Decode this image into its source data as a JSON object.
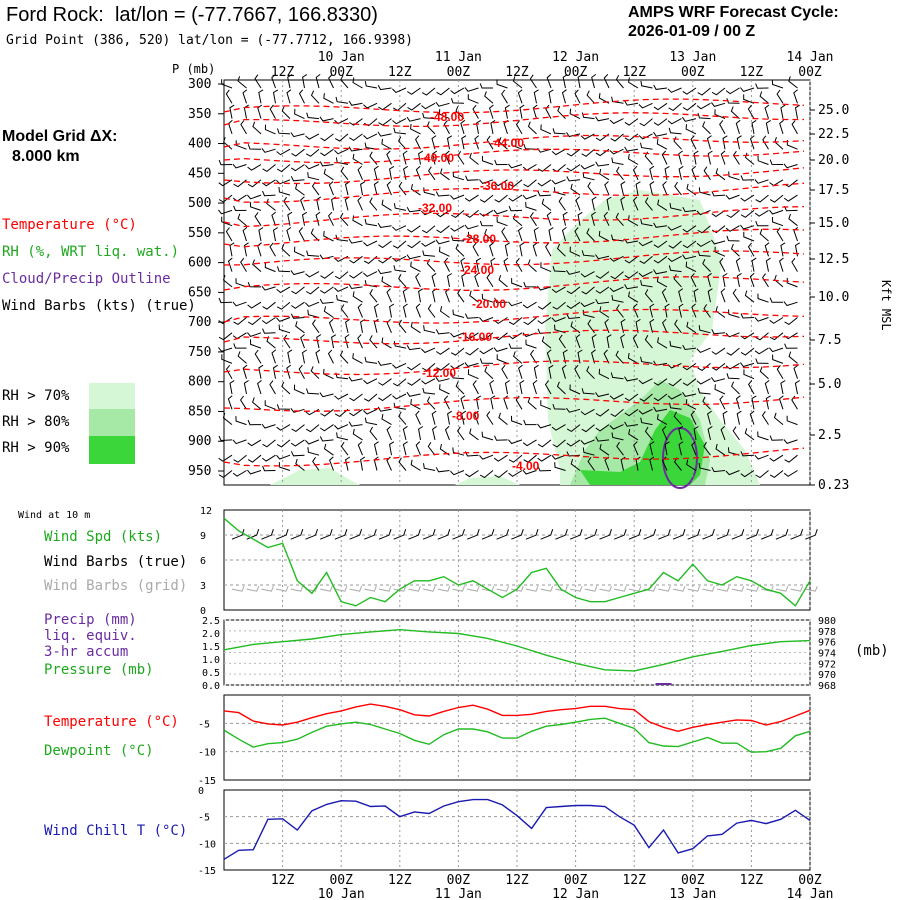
{
  "header": {
    "station": "Ford Rock:",
    "latlon": "lat/lon = (-77.7667, 166.8330)",
    "grid_point": "Grid Point (386, 520) lat/lon = (-77.7712, 166.9398)",
    "cycle_title": "AMPS WRF Forecast Cycle:",
    "cycle_time": "2026-01-09 / 00  Z"
  },
  "legend": {
    "model_grid": "Model Grid ΔX:",
    "model_dx": "8.000 km",
    "temperature": "Temperature (°C)",
    "rh": "RH (%, WRT liq. wat.)",
    "cloud": "Cloud/Precip Outline",
    "wind": "Wind Barbs (kts) (true)",
    "rh70": "RH > 70%",
    "rh80": "RH > 80%",
    "rh90": "RH > 90%"
  },
  "colors": {
    "temp": "#ff0000",
    "rh": "#1ea81e",
    "cloud": "#6a2ca0",
    "wind": "#000000",
    "rh70": "#d6f7d6",
    "rh80": "#a6e8a6",
    "rh90": "#3ad63a",
    "pressure": "#22bb22",
    "windchill": "#1a1ab0",
    "grid_barbs": "#aaaaaa"
  },
  "time_axis": {
    "top_hours": [
      "12Z",
      "00Z",
      "12Z",
      "00Z",
      "12Z",
      "00Z",
      "12Z",
      "00Z",
      "12Z",
      "00Z"
    ],
    "top_dates": [
      "10 Jan",
      "11 Jan",
      "12 Jan",
      "13 Jan",
      "14 Jan"
    ],
    "bottom_hours": [
      "12Z",
      "00Z",
      "12Z",
      "00Z",
      "12Z",
      "00Z",
      "12Z",
      "00Z",
      "12Z",
      "00Z"
    ],
    "bottom_dates": [
      "10 Jan",
      "11 Jan",
      "12 Jan",
      "13 Jan",
      "14 Jan"
    ]
  },
  "profile": {
    "p_unit": "P (mb)",
    "p_levels": [
      "300",
      "350",
      "400",
      "450",
      "500",
      "550",
      "600",
      "650",
      "700",
      "750",
      "800",
      "850",
      "900",
      "950"
    ],
    "kft_levels": [
      "25.0",
      "22.5",
      "20.0",
      "17.5",
      "15.0",
      "12.5",
      "10.0",
      "7.5",
      "5.0",
      "2.5",
      "0.23"
    ],
    "kft_label": "Kft MSL",
    "isotherm_labels": [
      "-48.00",
      "-44.00",
      "-40.00",
      "-36.00",
      "-32.00",
      "-28.00",
      "-24.00",
      "-20.00",
      "-16.00",
      "-12.00",
      "-8.00",
      "-4.00"
    ]
  },
  "wind_panel": {
    "title": "Wind at 10 m",
    "l1": "Wind Spd (kts)",
    "l2": "Wind Barbs (true)",
    "l3": "Wind Barbs (grid)",
    "ticks": [
      "12",
      "9",
      "6",
      "3",
      "0"
    ]
  },
  "pressure_panel": {
    "l1": "Precip (mm)",
    "l2": "liq. equiv.",
    "l3": "3-hr accum",
    "l4": "Pressure (mb)",
    "unit": "(mb)",
    "left_ticks": [
      "2.5",
      "2.0",
      "1.5",
      "1.0",
      "0.5",
      "0.0"
    ],
    "right_ticks": [
      "980",
      "978",
      "976",
      "974",
      "972",
      "970",
      "968"
    ]
  },
  "temp_panel": {
    "l1": "Temperature (°C)",
    "l2": "Dewpoint (°C)",
    "ticks": [
      "-5",
      "-10",
      "-15"
    ]
  },
  "chill_panel": {
    "l1": "Wind Chill T (°C)",
    "ticks": [
      "0",
      "-5",
      "-10",
      "-15"
    ]
  },
  "chart_data": [
    {
      "type": "line",
      "title": "Wind at 10 m",
      "ylabel": "Wind Spd (kts)",
      "ylim": [
        0,
        12
      ],
      "x_hours": [
        0,
        3,
        6,
        9,
        12,
        15,
        18,
        21,
        24,
        27,
        30,
        33,
        36,
        39,
        42,
        45,
        48,
        51,
        54,
        57,
        60,
        63,
        66,
        69,
        72,
        75,
        78,
        81,
        84,
        87,
        90,
        93,
        96,
        99,
        102,
        105,
        108,
        111,
        114,
        117,
        120
      ],
      "series": [
        {
          "name": "Wind Spd (kts)",
          "values": [
            11.0,
            9.5,
            8.5,
            7.5,
            8.0,
            3.5,
            2.0,
            4.5,
            1.0,
            0.5,
            1.5,
            1.0,
            2.5,
            3.5,
            3.5,
            4.0,
            3.0,
            3.5,
            2.5,
            1.5,
            2.5,
            4.5,
            5.0,
            2.5,
            1.5,
            1.0,
            1.0,
            1.5,
            2.0,
            2.5,
            4.5,
            3.5,
            5.5,
            3.5,
            3.0,
            4.0,
            3.5,
            2.5,
            2.0,
            0.5,
            3.5
          ]
        }
      ]
    },
    {
      "type": "line",
      "title": "Precip / Pressure",
      "ylabel": "Pressure (mb)",
      "ylim": [
        968,
        980
      ],
      "x_hours": [
        0,
        6,
        12,
        18,
        24,
        30,
        36,
        42,
        48,
        54,
        60,
        66,
        72,
        78,
        84,
        90,
        96,
        102,
        108,
        114,
        120
      ],
      "series": [
        {
          "name": "Pressure (mb)",
          "values": [
            974.5,
            975.5,
            976.0,
            976.5,
            977.3,
            977.8,
            978.2,
            977.8,
            977.5,
            976.6,
            975.2,
            973.5,
            972.0,
            970.8,
            970.6,
            971.8,
            973.2,
            974.2,
            975.3,
            976.0,
            976.2
          ]
        },
        {
          "name": "Precip (mm) 3-hr accum",
          "values": [
            0,
            0,
            0,
            0,
            0,
            0,
            0,
            0,
            0,
            0,
            0,
            0,
            0,
            0,
            0,
            0.05,
            0,
            0,
            0,
            0,
            0
          ]
        }
      ]
    },
    {
      "type": "line",
      "title": "Temperature / Dewpoint",
      "ylabel": "°C",
      "ylim": [
        -15,
        0
      ],
      "x_hours": [
        0,
        3,
        6,
        9,
        12,
        15,
        18,
        21,
        24,
        27,
        30,
        33,
        36,
        39,
        42,
        45,
        48,
        51,
        54,
        57,
        60,
        63,
        66,
        69,
        72,
        75,
        78,
        81,
        84,
        87,
        90,
        93,
        96,
        99,
        102,
        105,
        108,
        111,
        114,
        117,
        120
      ],
      "series": [
        {
          "name": "Temperature (°C)",
          "values": [
            -2.8,
            -3.1,
            -4.6,
            -5.1,
            -5.3,
            -4.8,
            -4.0,
            -3.3,
            -2.8,
            -2.1,
            -1.6,
            -2.0,
            -2.6,
            -3.5,
            -3.7,
            -2.9,
            -2.2,
            -1.8,
            -2.5,
            -3.6,
            -3.6,
            -3.4,
            -2.9,
            -2.6,
            -2.4,
            -2.0,
            -2.0,
            -2.4,
            -2.6,
            -4.7,
            -5.7,
            -6.4,
            -5.7,
            -5.2,
            -4.8,
            -4.4,
            -4.5,
            -5.3,
            -4.7,
            -3.7,
            -2.7
          ]
        },
        {
          "name": "Dewpoint (°C)",
          "values": [
            -6.2,
            -7.8,
            -9.2,
            -8.6,
            -8.4,
            -7.8,
            -6.6,
            -5.5,
            -5.1,
            -4.8,
            -5.2,
            -6.0,
            -6.8,
            -8.0,
            -8.7,
            -7.0,
            -6.0,
            -6.0,
            -6.5,
            -7.6,
            -7.6,
            -6.4,
            -5.5,
            -5.2,
            -4.8,
            -4.3,
            -4.1,
            -5.0,
            -5.9,
            -8.4,
            -9.0,
            -9.1,
            -8.3,
            -7.5,
            -8.5,
            -8.5,
            -10.1,
            -10.0,
            -9.4,
            -7.2,
            -6.4
          ]
        }
      ]
    },
    {
      "type": "line",
      "title": "Wind Chill",
      "ylabel": "Wind Chill T (°C)",
      "ylim": [
        -15,
        0
      ],
      "x_hours": [
        0,
        3,
        6,
        9,
        12,
        15,
        18,
        21,
        24,
        27,
        30,
        33,
        36,
        39,
        42,
        45,
        48,
        51,
        54,
        57,
        60,
        63,
        66,
        69,
        72,
        75,
        78,
        81,
        84,
        87,
        90,
        93,
        96,
        99,
        102,
        105,
        108,
        111,
        114,
        117,
        120
      ],
      "series": [
        {
          "name": "Wind Chill T (°C)",
          "values": [
            -13.0,
            -11.3,
            -11.2,
            -5.5,
            -5.4,
            -7.5,
            -3.9,
            -2.7,
            -2.0,
            -2.1,
            -3.1,
            -3.0,
            -5.0,
            -4.1,
            -4.4,
            -3.0,
            -2.2,
            -1.8,
            -1.8,
            -2.8,
            -4.8,
            -7.2,
            -3.3,
            -3.1,
            -2.9,
            -2.9,
            -3.1,
            -5.0,
            -6.6,
            -10.8,
            -7.5,
            -11.8,
            -11.0,
            -8.6,
            -8.3,
            -6.2,
            -5.7,
            -6.3,
            -5.5,
            -3.8,
            -5.7
          ]
        }
      ]
    }
  ]
}
